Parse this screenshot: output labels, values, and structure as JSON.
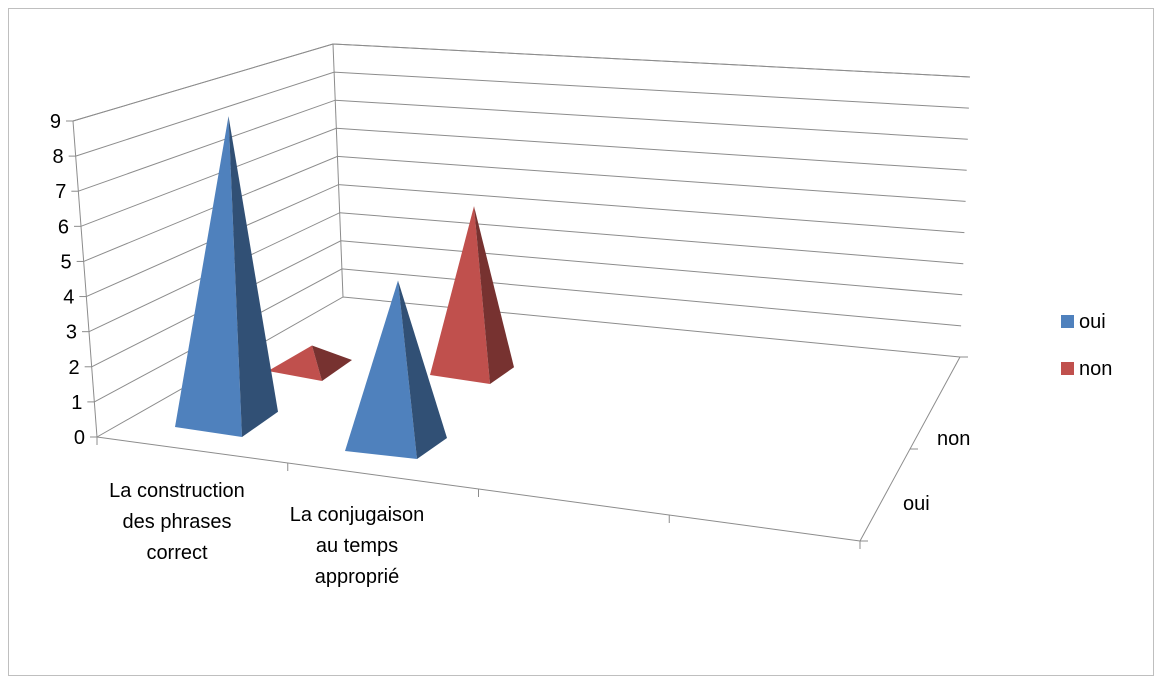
{
  "chart_data": {
    "type": "bar",
    "shape": "pyramid-3d",
    "categories": [
      "La construction des phrases correct",
      "La conjugaison au temps approprié"
    ],
    "category_lines": [
      [
        "La construction",
        "des phrases",
        "correct"
      ],
      [
        "La conjugaison",
        "au temps",
        "approprié"
      ]
    ],
    "depth_labels": [
      "non",
      "oui"
    ],
    "series": [
      {
        "name": "oui",
        "color": "#4f81bd",
        "values": [
          9,
          5
        ]
      },
      {
        "name": "non",
        "color": "#c0504d",
        "values": [
          1,
          5
        ]
      }
    ],
    "yticks": [
      "0",
      "1",
      "2",
      "3",
      "4",
      "5",
      "6",
      "7",
      "8",
      "9"
    ],
    "ylim": [
      0,
      9
    ],
    "grid": true,
    "legend": "right"
  }
}
